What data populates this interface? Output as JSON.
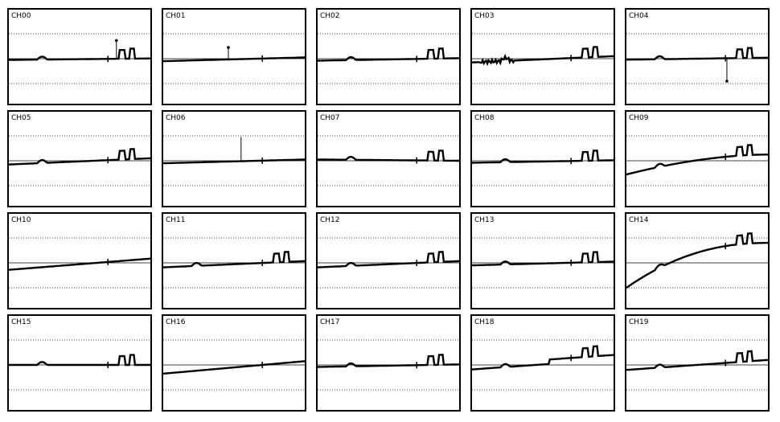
{
  "chart_data": {
    "type": "line",
    "layout": "small-multiples",
    "columns": 5,
    "rows": 4,
    "grid": "dotted horizontal",
    "x_range": [
      0,
      1
    ],
    "y_range": [
      -1,
      1
    ],
    "panels": [
      {
        "label": "CH00",
        "baseline": -0.05,
        "trend": 0.06,
        "curve": 0,
        "bumps": true,
        "spike": {
          "x": 0.76,
          "to": 0.73,
          "up": true
        }
      },
      {
        "label": "CH01",
        "baseline": -0.1,
        "trend": 0.15,
        "curve": 0,
        "bumps": false,
        "spike": {
          "x": 0.46,
          "to": 0.45,
          "up": true
        }
      },
      {
        "label": "CH02",
        "baseline": -0.08,
        "trend": 0.1,
        "curve": 0,
        "bumps": true
      },
      {
        "label": "CH03",
        "baseline": -0.15,
        "trend": 0.25,
        "curve": 0,
        "bumps": true,
        "noisy": true
      },
      {
        "label": "CH04",
        "baseline": -0.04,
        "trend": 0.08,
        "curve": 0,
        "bumps": true,
        "spike": {
          "x": 0.71,
          "to": -0.9,
          "up": false
        }
      },
      {
        "label": "CH05",
        "baseline": -0.15,
        "trend": 0.25,
        "curve": 0,
        "bumps": true
      },
      {
        "label": "CH06",
        "baseline": -0.1,
        "trend": 0.15,
        "curve": 0,
        "bumps": false,
        "spike": {
          "x": 0.55,
          "to": 0.95,
          "up": true,
          "noDot": true
        }
      },
      {
        "label": "CH07",
        "baseline": 0.05,
        "trend": -0.05,
        "curve": 0,
        "bumps": true
      },
      {
        "label": "CH08",
        "baseline": -0.08,
        "trend": 0.1,
        "curve": 0,
        "bumps": true
      },
      {
        "label": "CH09",
        "baseline": -0.55,
        "trend": 0.8,
        "curve": 0.4,
        "bumps": true
      },
      {
        "label": "CH10",
        "baseline": -0.28,
        "trend": 0.45,
        "curve": 0,
        "bumps": false
      },
      {
        "label": "CH11",
        "baseline": -0.18,
        "trend": 0.25,
        "curve": 0,
        "bumps": true
      },
      {
        "label": "CH12",
        "baseline": -0.18,
        "trend": 0.25,
        "curve": 0,
        "bumps": true
      },
      {
        "label": "CH13",
        "baseline": -0.1,
        "trend": 0.15,
        "curve": 0,
        "bumps": true
      },
      {
        "label": "CH14",
        "baseline": -1.0,
        "trend": 1.8,
        "curve": 0.6,
        "bumps": true
      },
      {
        "label": "CH15",
        "baseline": 0.0,
        "trend": 0.0,
        "curve": 0,
        "bumps": true
      },
      {
        "label": "CH16",
        "baseline": -0.35,
        "trend": 0.5,
        "curve": 0,
        "bumps": false
      },
      {
        "label": "CH17",
        "baseline": -0.08,
        "trend": 0.1,
        "curve": 0,
        "bumps": true
      },
      {
        "label": "CH18",
        "baseline": -0.18,
        "trend": 0.4,
        "curve": 0,
        "bumps": true,
        "step": {
          "x": 0.55,
          "dy": 0.18
        }
      },
      {
        "label": "CH19",
        "baseline": -0.2,
        "trend": 0.4,
        "curve": 0,
        "bumps": true
      }
    ]
  }
}
